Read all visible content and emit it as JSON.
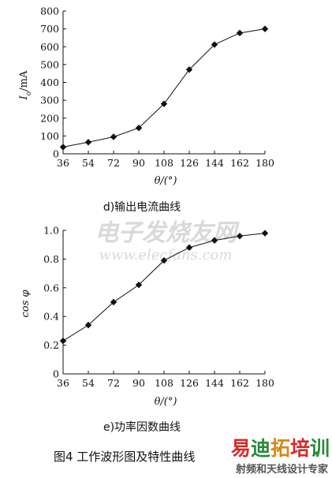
{
  "chart_data": [
    {
      "type": "line",
      "caption": "d)输出电流曲线",
      "ylabel_main": "I",
      "ylabel_sub": "o",
      "ylabel_unit": "/mA",
      "xlabel": "θ/(°)",
      "x": [
        36,
        54,
        72,
        90,
        108,
        126,
        144,
        162,
        180
      ],
      "xticks": [
        "36",
        "54",
        "72",
        "90",
        "108",
        "126",
        "144",
        "162",
        "180"
      ],
      "y": [
        38,
        65,
        95,
        145,
        280,
        472,
        612,
        677,
        700
      ],
      "yticks": [
        "0",
        "100",
        "200",
        "300",
        "400",
        "500",
        "600",
        "700",
        "800"
      ],
      "ylim": [
        0,
        800
      ],
      "xlim": [
        36,
        180
      ],
      "marker": "diamond",
      "grid": false
    },
    {
      "type": "line",
      "caption": "e)功率因数曲线",
      "ylabel": "cos φ",
      "xlabel": "θ/(°)",
      "x": [
        36,
        54,
        72,
        90,
        108,
        126,
        144,
        162,
        180
      ],
      "xticks": [
        "36",
        "54",
        "72",
        "90",
        "108",
        "126",
        "144",
        "162",
        "180"
      ],
      "y": [
        0.23,
        0.34,
        0.5,
        0.62,
        0.79,
        0.88,
        0.93,
        0.96,
        0.98
      ],
      "yticks": [
        "0",
        "0.2",
        "0.4",
        "0.6",
        "0.8",
        "1.0"
      ],
      "ylim": [
        0,
        1.0
      ],
      "xlim": [
        36,
        180
      ],
      "marker": "diamond",
      "grid": false
    }
  ],
  "figure_caption": "图4  工作波形图及特性曲线",
  "watermark": {
    "chinese": "电子发烧友网",
    "url": "www.elecfans.com"
  },
  "brand": {
    "title": "易迪拓培训",
    "subtitle": "射频和天线设计专家",
    "colors": [
      "#d62a2a",
      "#2a8a3a",
      "#d9861a",
      "#d62a2a",
      "#2a8a3a"
    ],
    "subtitle_color": "#555555"
  }
}
